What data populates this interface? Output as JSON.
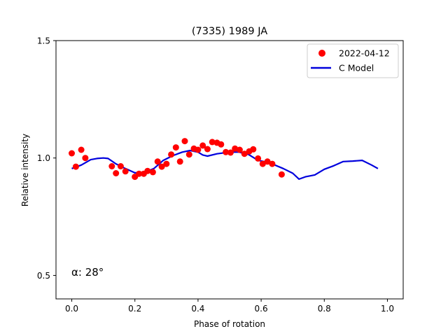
{
  "chart_data": {
    "type": "scatter",
    "title": "(7335) 1989 JA",
    "xlabel": "Phase of rotation",
    "ylabel": "Relative intensity",
    "xlim": [
      -0.05,
      1.05
    ],
    "ylim": [
      0.4,
      1.5
    ],
    "xticks": [
      0.0,
      0.2,
      0.4,
      0.6,
      0.8,
      1.0
    ],
    "xtick_labels": [
      "0.0",
      "0.2",
      "0.4",
      "0.6",
      "0.8",
      "1.0"
    ],
    "yticks": [
      0.5,
      1.0,
      1.5
    ],
    "ytick_labels": [
      "0.5",
      "1.0",
      "1.5"
    ],
    "annotation": "α: 28°",
    "legend_position": "top-right",
    "colors": {
      "points": "#ff0000",
      "model": "#0000dd"
    },
    "series": [
      {
        "name": "2022-04-12",
        "kind": "scatter",
        "x": [
          0.0,
          0.013,
          0.03,
          0.043,
          0.127,
          0.14,
          0.155,
          0.17,
          0.2,
          0.213,
          0.228,
          0.24,
          0.257,
          0.272,
          0.285,
          0.3,
          0.315,
          0.33,
          0.343,
          0.358,
          0.372,
          0.387,
          0.4,
          0.415,
          0.43,
          0.445,
          0.46,
          0.473,
          0.488,
          0.503,
          0.517,
          0.532,
          0.547,
          0.562,
          0.575,
          0.59,
          0.605,
          0.62,
          0.635,
          0.665
        ],
        "y": [
          1.02,
          0.963,
          1.035,
          1.0,
          0.965,
          0.935,
          0.965,
          0.943,
          0.92,
          0.933,
          0.933,
          0.945,
          0.94,
          0.985,
          0.963,
          0.975,
          1.015,
          1.045,
          0.985,
          1.072,
          1.015,
          1.04,
          1.035,
          1.053,
          1.038,
          1.068,
          1.065,
          1.058,
          1.025,
          1.023,
          1.04,
          1.035,
          1.018,
          1.028,
          1.037,
          0.998,
          0.975,
          0.985,
          0.975,
          0.93
        ]
      },
      {
        "name": "C Model",
        "kind": "line",
        "x": [
          0.0,
          0.03,
          0.06,
          0.08,
          0.1,
          0.115,
          0.14,
          0.17,
          0.2,
          0.23,
          0.26,
          0.29,
          0.32,
          0.35,
          0.375,
          0.4,
          0.415,
          0.43,
          0.46,
          0.5,
          0.53,
          0.56,
          0.59,
          0.62,
          0.64,
          0.67,
          0.7,
          0.72,
          0.74,
          0.77,
          0.8,
          0.83,
          0.86,
          0.89,
          0.92,
          0.95,
          0.97
        ],
        "y": [
          0.955,
          0.97,
          0.993,
          0.998,
          1.0,
          0.998,
          0.975,
          0.955,
          0.937,
          0.938,
          0.955,
          0.99,
          1.01,
          1.025,
          1.032,
          1.025,
          1.013,
          1.008,
          1.018,
          1.025,
          1.025,
          1.015,
          0.99,
          0.982,
          0.972,
          0.955,
          0.935,
          0.91,
          0.92,
          0.928,
          0.952,
          0.967,
          0.985,
          0.987,
          0.99,
          0.97,
          0.955
        ]
      }
    ]
  }
}
